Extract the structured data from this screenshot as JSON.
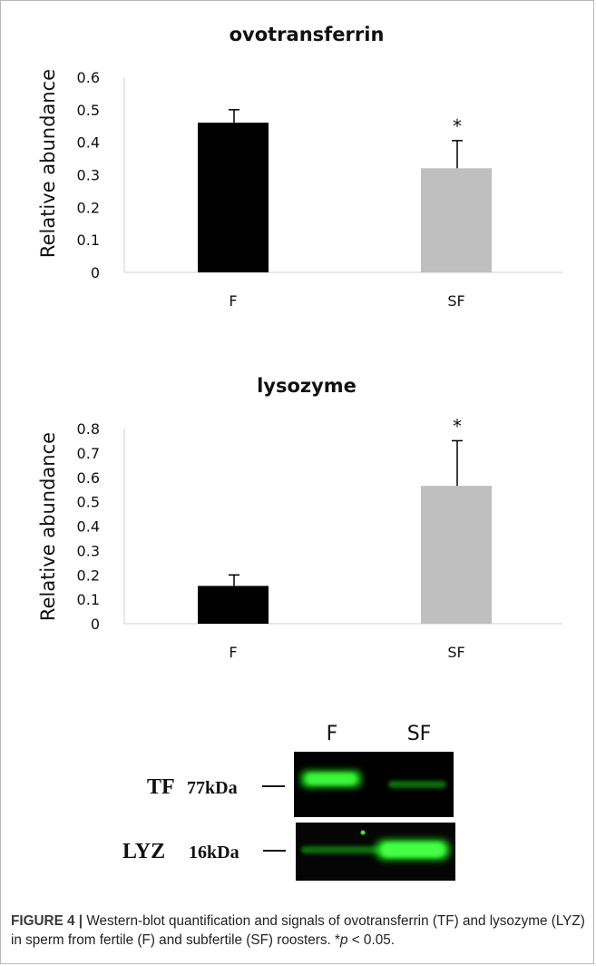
{
  "chart_data": [
    {
      "type": "bar",
      "title": "ovotransferrin",
      "xlabel": "",
      "ylabel": "Relative abundance",
      "categories": [
        "F",
        "SF"
      ],
      "values": [
        0.46,
        0.32
      ],
      "errors": [
        0.04,
        0.085
      ],
      "bar_colors": [
        "#000000",
        "#bfbfbf"
      ],
      "significance": [
        "",
        "*"
      ],
      "ylim": [
        0,
        0.6
      ],
      "yticks": [
        "0",
        "0.1",
        "0.2",
        "0.3",
        "0.4",
        "0.5",
        "0.6"
      ],
      "grid": false
    },
    {
      "type": "bar",
      "title": "lysozyme",
      "xlabel": "",
      "ylabel": "Relative abundance",
      "categories": [
        "F",
        "SF"
      ],
      "values": [
        0.155,
        0.565
      ],
      "errors": [
        0.045,
        0.185
      ],
      "bar_colors": [
        "#000000",
        "#bfbfbf"
      ],
      "significance": [
        "",
        "*"
      ],
      "ylim": [
        0,
        0.8
      ],
      "yticks": [
        "0",
        "0.1",
        "0.2",
        "0.3",
        "0.4",
        "0.5",
        "0.6",
        "0.7",
        "0.8"
      ],
      "grid": false
    }
  ],
  "blot": {
    "lanes": [
      "F",
      "SF"
    ],
    "rows": [
      {
        "protein": "TF",
        "size": "77kDa"
      },
      {
        "protein": "LYZ",
        "size": "16kDa"
      }
    ],
    "signal_color": "#22e622"
  },
  "caption": {
    "label": "FIGURE 4 |",
    "text_a": " Western-blot quantification and signals of ovotransferrin (TF) and lysozyme (LYZ) in sperm from fertile (F) and subfertile (SF) roosters. *",
    "p": "p",
    "text_b": " < 0.05."
  }
}
